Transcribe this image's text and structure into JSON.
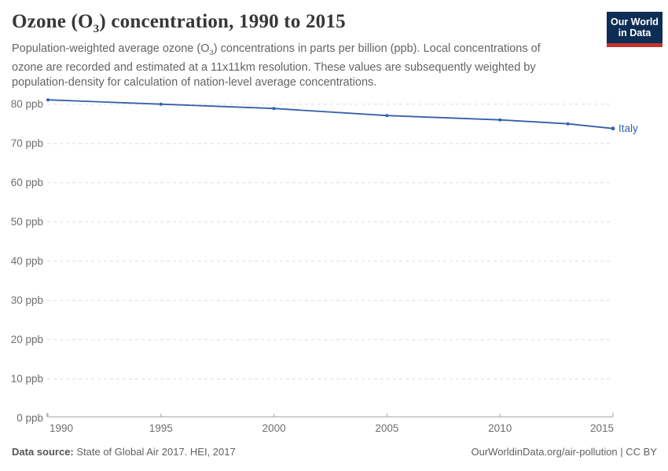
{
  "header": {
    "title_pre": "Ozone (O",
    "title_sub": "3",
    "title_post": ") concentration, 1990 to 2015",
    "subtitle_pre": "Population-weighted average ozone (O",
    "subtitle_sub": "3",
    "subtitle_post": ") concentrations in parts per billion (ppb). Local concentrations of ozone are recorded and estimated at a 11x11km resolution. These values are subsequently weighted by population-density for calculation of nation-level average concentrations."
  },
  "logo": {
    "line1": "Our World",
    "line2": "in Data",
    "bg_color": "#0d2e54",
    "bar_color": "#c0342b"
  },
  "chart_data": {
    "type": "line",
    "title": "Ozone (O3) concentration, 1990 to 2015",
    "x": [
      1990,
      1995,
      2000,
      2005,
      2010,
      2013,
      2015
    ],
    "series": [
      {
        "name": "Italy",
        "color": "#3360a9",
        "values": [
          81.1,
          80.0,
          78.9,
          77.1,
          76.0,
          75.0,
          73.8
        ]
      }
    ],
    "xlim": [
      1990,
      2015
    ],
    "ylim": [
      0,
      80
    ],
    "x_ticks": [
      1990,
      1995,
      2000,
      2005,
      2010,
      2015
    ],
    "y_ticks": [
      0,
      10,
      20,
      30,
      40,
      50,
      60,
      70,
      80
    ],
    "y_tick_suffix": " ppb",
    "grid": "horizontal-dashed",
    "legend_position": "end-of-line",
    "colors": {
      "grid": "#dedede",
      "axis": "#a1a1a1",
      "tick_label": "#6e6e6e"
    }
  },
  "footer": {
    "source_label": "Data source:",
    "source_text": " State of Global Air 2017. HEI, 2017",
    "link": "OurWorldinData.org/air-pollution | CC BY"
  }
}
